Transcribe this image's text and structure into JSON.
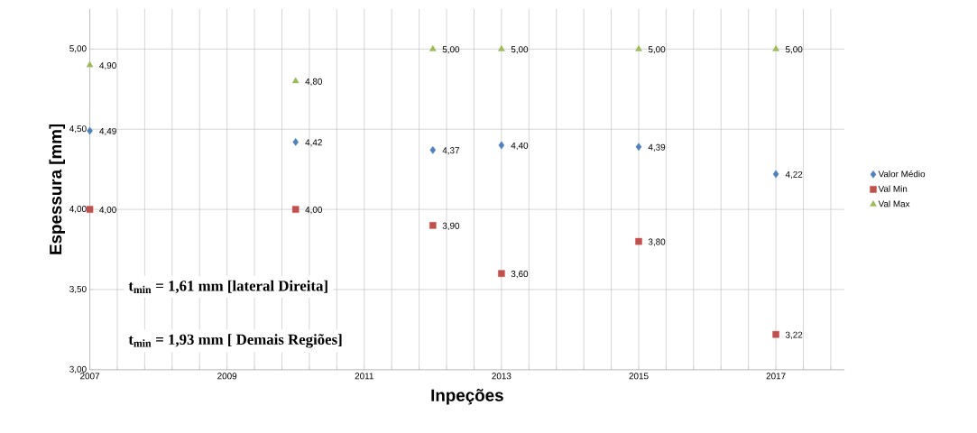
{
  "chart_data": {
    "type": "scatter",
    "xlabel": "Inpeções",
    "ylabel": "Espessura [mm]",
    "x": [
      2007,
      2010,
      2012,
      2013,
      2015,
      2017
    ],
    "series": [
      {
        "name": "Valor Médio",
        "color": "#4f81bd",
        "marker": "diamond",
        "values": [
          4.49,
          4.42,
          4.37,
          4.4,
          4.39,
          4.22
        ],
        "value_labels": [
          "4,49",
          "4,42",
          "4,37",
          "4,40",
          "4,39",
          "4,22"
        ]
      },
      {
        "name": "Val Min",
        "color": "#c0504d",
        "marker": "square",
        "values": [
          4.0,
          4.0,
          3.9,
          3.6,
          3.8,
          3.22
        ],
        "value_labels": [
          "4,00",
          "4,00",
          "3,90",
          "3,60",
          "3,80",
          "3,22"
        ]
      },
      {
        "name": "Val Max",
        "color": "#9bbb59",
        "marker": "triangle",
        "values": [
          4.9,
          4.8,
          5.0,
          5.0,
          5.0,
          5.0
        ],
        "value_labels": [
          "4,90",
          "4,80",
          "5,00",
          "5,00",
          "5,00",
          "5,00"
        ]
      }
    ],
    "xlim": [
      2007,
      2018
    ],
    "ylim": [
      3,
      5.25
    ],
    "xticks": [
      2007,
      {
        "value": 2007.4,
        "label": null
      },
      {
        "value": 2007.8,
        "label": null
      },
      {
        "value": 2008.2,
        "label": null
      },
      {
        "value": 2008.6,
        "label": null
      },
      2009,
      {
        "value": 2009.4,
        "label": null
      },
      {
        "value": 2009.8,
        "label": null
      },
      {
        "value": 2010.2,
        "label": null
      },
      {
        "value": 2010.6,
        "label": null
      },
      2011,
      {
        "value": 2011.4,
        "label": null
      },
      {
        "value": 2011.8,
        "label": null
      },
      {
        "value": 2012.2,
        "label": null
      },
      {
        "value": 2012.6,
        "label": null
      },
      2013,
      {
        "value": 2013.4,
        "label": null
      },
      {
        "value": 2013.8,
        "label": null
      },
      {
        "value": 2014.2,
        "label": null
      },
      {
        "value": 2014.6,
        "label": null
      },
      2015,
      {
        "value": 2015.4,
        "label": null
      },
      {
        "value": 2015.8,
        "label": null
      },
      {
        "value": 2016.2,
        "label": null
      },
      {
        "value": 2016.6,
        "label": null
      },
      2017,
      {
        "value": 2017.4,
        "label": null
      },
      {
        "value": 2017.8,
        "label": null
      }
    ],
    "yticks": [
      {
        "value": 3,
        "label": "3,00"
      },
      {
        "value": 3.5,
        "label": "3,50"
      },
      {
        "value": 4,
        "label": "4,00"
      },
      {
        "value": 4.5,
        "label": "4,50"
      },
      {
        "value": 5,
        "label": "5,00"
      }
    ],
    "grid": true,
    "legend": "right",
    "annotations": [
      "t$_{min}$ = 1,61 mm [lateral Direita]",
      "t$_{min}$ = 1,93 mm [ Demais Regiões]"
    ]
  }
}
